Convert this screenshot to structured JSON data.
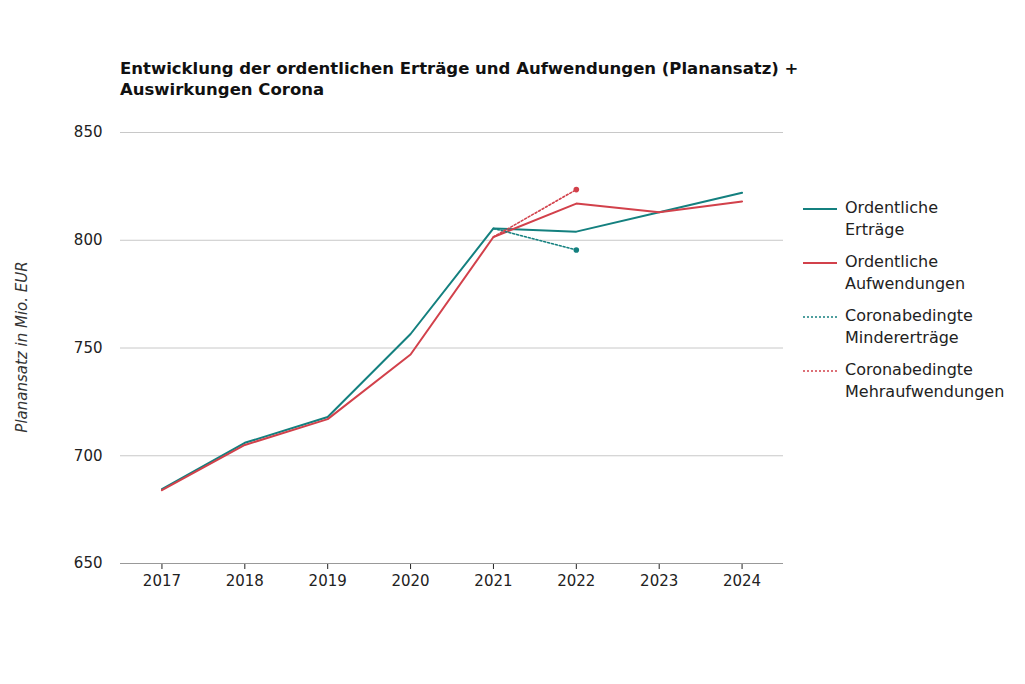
{
  "chart_data": {
    "type": "line",
    "title": "Entwicklung der ordentlichen Erträge und Aufwendungen (Planansatz) + Auswirkungen Corona",
    "y_label": "Planansatz in Mio. EUR",
    "x": [
      2017,
      2018,
      2019,
      2020,
      2021,
      2022,
      2023,
      2024
    ],
    "series": [
      {
        "name": "Ordentliche Erträge",
        "color": "#14807f",
        "line_style": "solid",
        "values": [
          684.5,
          706,
          718,
          756.5,
          805.5,
          804,
          813,
          822
        ]
      },
      {
        "name": "Ordentliche Aufwendungen",
        "color": "#d2414b",
        "line_style": "solid",
        "values": [
          684,
          705,
          717,
          747,
          801.5,
          817,
          813,
          818
        ]
      },
      {
        "name": "Coronabedingte Mindererträge",
        "color": "#14807f",
        "line_style": "dotted",
        "marker": "end",
        "values": [
          null,
          null,
          null,
          null,
          805.5,
          795.5,
          null,
          null
        ]
      },
      {
        "name": "Coronabedingte Mehraufwendungen",
        "color": "#d2414b",
        "line_style": "dotted",
        "marker": "end",
        "values": [
          null,
          null,
          null,
          null,
          801.5,
          823.5,
          null,
          null
        ]
      }
    ],
    "xlim": [
      2016.5,
      2024.5
    ],
    "xticks": [
      2017,
      2018,
      2019,
      2020,
      2021,
      2022,
      2023,
      2024
    ],
    "ylim": [
      650,
      850
    ],
    "yticks": [
      650,
      700,
      750,
      800,
      850
    ],
    "grid": true,
    "legend": "right"
  }
}
